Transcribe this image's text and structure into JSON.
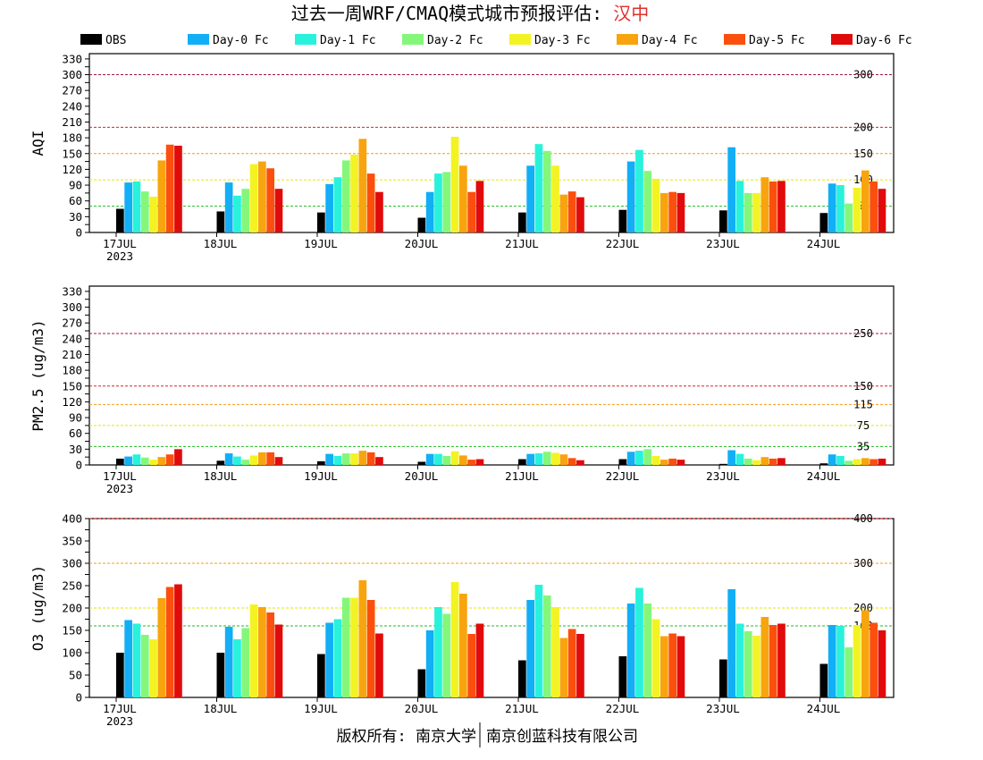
{
  "title": {
    "text": "过去一周WRF/CMAQ模式城市预报评估: ",
    "city": "汉中",
    "city_color": "#e0302a"
  },
  "legend": [
    {
      "name": "OBS",
      "color": "#000000"
    },
    {
      "name": "Day-0 Fc",
      "color": "#12aef6"
    },
    {
      "name": "Day-1 Fc",
      "color": "#28f2dc"
    },
    {
      "name": "Day-2 Fc",
      "color": "#84f77a"
    },
    {
      "name": "Day-3 Fc",
      "color": "#f3f324"
    },
    {
      "name": "Day-4 Fc",
      "color": "#f8a40f"
    },
    {
      "name": "Day-5 Fc",
      "color": "#fb4f0e"
    },
    {
      "name": "Day-6 Fc",
      "color": "#e10b0b"
    }
  ],
  "footer": {
    "left": "版权所有: 南京大学",
    "right": "南京创蓝科技有限公司"
  },
  "chart_data": [
    {
      "type": "bar",
      "ylabel": "AQI",
      "categories": [
        "17JUL",
        "18JUL",
        "19JUL",
        "20JUL",
        "21JUL",
        "22JUL",
        "23JUL",
        "24JUL"
      ],
      "year_label": "2023",
      "ylim": [
        0,
        340
      ],
      "yticks": [
        0,
        15,
        30,
        45,
        60,
        75,
        90,
        105,
        120,
        135,
        150,
        165,
        180,
        195,
        210,
        225,
        240,
        255,
        270,
        285,
        300,
        315,
        330
      ],
      "ytick_labels": [
        0,
        30,
        60,
        90,
        120,
        150,
        180,
        210,
        240,
        270,
        300,
        330
      ],
      "thresholds": [
        {
          "value": 50,
          "label": "50",
          "color": "#22bb22"
        },
        {
          "value": 100,
          "label": "100",
          "color": "#e6e600"
        },
        {
          "value": 150,
          "label": "150",
          "color": "#f59a1c"
        },
        {
          "value": 200,
          "label": "200",
          "color": "#dd2222"
        },
        {
          "value": 300,
          "label": "300",
          "color": "#a0153e"
        }
      ],
      "series": [
        {
          "name": "OBS",
          "values": [
            45,
            40,
            38,
            28,
            38,
            43,
            42,
            37
          ]
        },
        {
          "name": "Day-0 Fc",
          "values": [
            95,
            95,
            92,
            77,
            127,
            135,
            162,
            93
          ]
        },
        {
          "name": "Day-1 Fc",
          "values": [
            97,
            70,
            105,
            112,
            168,
            157,
            98,
            90
          ]
        },
        {
          "name": "Day-2 Fc",
          "values": [
            78,
            83,
            137,
            115,
            155,
            117,
            75,
            55
          ]
        },
        {
          "name": "Day-3 Fc",
          "values": [
            68,
            130,
            148,
            182,
            127,
            102,
            75,
            85
          ]
        },
        {
          "name": "Day-4 Fc",
          "values": [
            137,
            135,
            178,
            127,
            72,
            75,
            105,
            118
          ]
        },
        {
          "name": "Day-5 Fc",
          "values": [
            167,
            122,
            112,
            77,
            78,
            77,
            97,
            97
          ]
        },
        {
          "name": "Day-6 Fc",
          "values": [
            165,
            83,
            77,
            98,
            67,
            75,
            98,
            83
          ]
        }
      ]
    },
    {
      "type": "bar",
      "ylabel": "PM2.5 (ug/m3)",
      "categories": [
        "17JUL",
        "18JUL",
        "19JUL",
        "20JUL",
        "21JUL",
        "22JUL",
        "23JUL",
        "24JUL"
      ],
      "year_label": "2023",
      "ylim": [
        0,
        340
      ],
      "yticks": [
        0,
        15,
        30,
        45,
        60,
        75,
        90,
        105,
        120,
        135,
        150,
        165,
        180,
        195,
        210,
        225,
        240,
        255,
        270,
        285,
        300,
        315,
        330
      ],
      "ytick_labels": [
        0,
        30,
        60,
        90,
        120,
        150,
        180,
        210,
        240,
        270,
        300,
        330
      ],
      "thresholds": [
        {
          "value": 35,
          "label": "35",
          "color": "#22bb22"
        },
        {
          "value": 75,
          "label": "75",
          "color": "#e6e600"
        },
        {
          "value": 115,
          "label": "115",
          "color": "#f59a1c"
        },
        {
          "value": 150,
          "label": "150",
          "color": "#dd2222"
        },
        {
          "value": 250,
          "label": "250",
          "color": "#a0153e"
        }
      ],
      "series": [
        {
          "name": "OBS",
          "values": [
            12,
            8,
            7,
            6,
            11,
            11,
            2,
            3
          ]
        },
        {
          "name": "Day-0 Fc",
          "values": [
            16,
            22,
            21,
            21,
            21,
            25,
            28,
            20
          ]
        },
        {
          "name": "Day-1 Fc",
          "values": [
            20,
            16,
            17,
            21,
            22,
            27,
            21,
            17
          ]
        },
        {
          "name": "Day-2 Fc",
          "values": [
            14,
            10,
            22,
            17,
            25,
            30,
            12,
            8
          ]
        },
        {
          "name": "Day-3 Fc",
          "values": [
            10,
            18,
            22,
            26,
            23,
            17,
            9,
            11
          ]
        },
        {
          "name": "Day-4 Fc",
          "values": [
            15,
            24,
            27,
            18,
            20,
            10,
            15,
            13
          ]
        },
        {
          "name": "Day-5 Fc",
          "values": [
            20,
            24,
            24,
            10,
            13,
            12,
            12,
            11
          ]
        },
        {
          "name": "Day-6 Fc",
          "values": [
            30,
            15,
            15,
            11,
            9,
            10,
            13,
            12
          ]
        }
      ]
    },
    {
      "type": "bar",
      "ylabel": "O3 (ug/m3)",
      "categories": [
        "17JUL",
        "18JUL",
        "19JUL",
        "20JUL",
        "21JUL",
        "22JUL",
        "23JUL",
        "24JUL"
      ],
      "year_label": "2023",
      "ylim": [
        0,
        400
      ],
      "yticks": [
        0,
        25,
        50,
        75,
        100,
        125,
        150,
        175,
        200,
        225,
        250,
        275,
        300,
        325,
        350,
        375,
        400
      ],
      "ytick_labels": [
        0,
        50,
        100,
        150,
        200,
        250,
        300,
        350,
        400
      ],
      "thresholds": [
        {
          "value": 160,
          "label": "160",
          "color": "#22bb22"
        },
        {
          "value": 200,
          "label": "200",
          "color": "#e6e600"
        },
        {
          "value": 300,
          "label": "300",
          "color": "#f59a1c"
        },
        {
          "value": 400,
          "label": "400",
          "color": "#dd2222"
        }
      ],
      "series": [
        {
          "name": "OBS",
          "values": [
            100,
            100,
            97,
            63,
            83,
            92,
            85,
            75
          ]
        },
        {
          "name": "Day-0 Fc",
          "values": [
            173,
            158,
            167,
            150,
            218,
            210,
            242,
            162
          ]
        },
        {
          "name": "Day-1 Fc",
          "values": [
            165,
            130,
            175,
            202,
            252,
            245,
            165,
            160
          ]
        },
        {
          "name": "Day-2 Fc",
          "values": [
            140,
            155,
            223,
            187,
            228,
            210,
            148,
            112
          ]
        },
        {
          "name": "Day-3 Fc",
          "values": [
            130,
            208,
            223,
            258,
            202,
            175,
            138,
            162
          ]
        },
        {
          "name": "Day-4 Fc",
          "values": [
            222,
            202,
            262,
            232,
            133,
            137,
            180,
            195
          ]
        },
        {
          "name": "Day-5 Fc",
          "values": [
            247,
            190,
            218,
            142,
            153,
            143,
            162,
            167
          ]
        },
        {
          "name": "Day-6 Fc",
          "values": [
            253,
            163,
            143,
            165,
            142,
            137,
            165,
            150
          ]
        }
      ]
    }
  ]
}
